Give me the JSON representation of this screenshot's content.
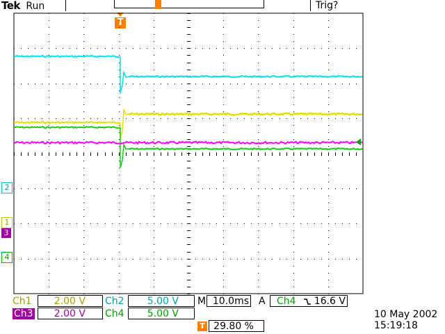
{
  "header": {
    "brand": "Tek",
    "status": "Run",
    "trigger_status": "Trig?"
  },
  "trigger_marker": {
    "label": "T"
  },
  "grid": {
    "divisions_x": 10,
    "divisions_y": 8
  },
  "channel_markers": [
    {
      "label": "2",
      "color": "#00c0d0"
    },
    {
      "label": "1",
      "color": "#c8c800"
    },
    {
      "label": "3",
      "color": "#b000b0"
    },
    {
      "label": "4",
      "color": "#00b000"
    }
  ],
  "colors": {
    "ch1": "#e0e000",
    "ch2": "#00e0e8",
    "ch3": "#ff00ff",
    "ch4": "#10d010",
    "trigger": "#ff8000",
    "ch3_bg": "#a000a0"
  },
  "settings": {
    "ch1": {
      "label": "Ch1",
      "value": "2.00 V"
    },
    "ch2": {
      "label": "Ch2",
      "value": "5.00 V"
    },
    "ch3": {
      "label": "Ch3",
      "value": "2.00 V"
    },
    "ch4": {
      "label": "Ch4",
      "value": "5.00 V"
    },
    "timebase": {
      "label": "M",
      "value": "10.0ms"
    },
    "trigger": {
      "label": "A",
      "source": "Ch4",
      "slope_icon": "falling-edge-icon",
      "level": "16.6 V"
    },
    "position": {
      "value": "29.80 %"
    }
  },
  "datetime": {
    "date": "10 May 2002",
    "time": "15:19:18"
  }
}
